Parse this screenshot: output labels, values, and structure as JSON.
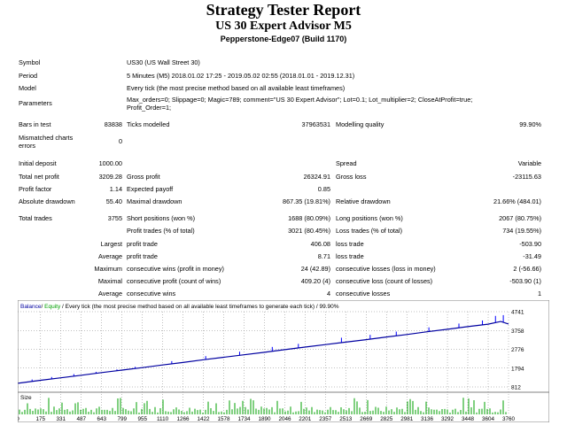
{
  "report": {
    "title": "Strategy Tester Report",
    "subtitle": "US 30 Expert Advisor M5",
    "server": "Pepperstone-Edge07 (Build 1170)"
  },
  "info": {
    "symbol_label": "Symbol",
    "symbol": "US30 (US Wall Street 30)",
    "period_label": "Period",
    "period": "5 Minutes (M5) 2018.01.02 17:25 - 2019.05.02 02:55 (2018.01.01 - 2019.12.31)",
    "model_label": "Model",
    "model": "Every tick (the most precise method based on all available least timeframes)",
    "parameters_label": "Parameters",
    "parameters_line1": "Max_orders=0; Slippage=0; Magic=789; comment=\"US 30 Expert Advisor\"; Lot=0.1; Lot_multiplier=2; CloseAtProfit=true;",
    "parameters_line2": "Profit_Order=1;"
  },
  "stats": {
    "bars_label": "Bars in test",
    "bars": "83838",
    "ticks_label": "Ticks modelled",
    "ticks": "37963531",
    "quality_label": "Modelling quality",
    "quality": "99.90%",
    "mismatch_label1": "Mismatched charts",
    "mismatch_label2": "errors",
    "mismatch": "0",
    "deposit_label": "Initial deposit",
    "deposit": "1000.00",
    "spread_label": "Spread",
    "spread": "Variable",
    "net_label": "Total net profit",
    "net": "3209.28",
    "gross_profit_label": "Gross profit",
    "gross_profit": "26324.91",
    "gross_loss_label": "Gross loss",
    "gross_loss": "-23115.63",
    "pf_label": "Profit factor",
    "pf": "1.14",
    "payoff_label": "Expected payoff",
    "payoff": "0.85",
    "abs_dd_label": "Absolute drawdown",
    "abs_dd": "55.40",
    "max_dd_label": "Maximal drawdown",
    "max_dd": "867.35 (19.81%)",
    "rel_dd_label": "Relative drawdown",
    "rel_dd": "21.66% (484.01)",
    "trades_label": "Total trades",
    "trades": "3755",
    "short_label": "Short positions (won %)",
    "short": "1688 (80.09%)",
    "long_label": "Long positions (won %)",
    "long": "2067 (80.75%)",
    "ptrades_label": "Profit trades (% of total)",
    "ptrades": "3021 (80.45%)",
    "ltrades_label": "Loss trades (% of total)",
    "ltrades": "734 (19.55%)",
    "largest": "Largest",
    "average": "Average",
    "maximum": "Maximum",
    "maximal": "Maximal",
    "average2": "Average",
    "largest_profit_label": "profit trade",
    "largest_profit": "406.08",
    "largest_loss_label": "loss trade",
    "largest_loss": "-503.90",
    "avg_profit_label": "profit trade",
    "avg_profit": "8.71",
    "avg_loss_label": "loss trade",
    "avg_loss": "-31.49",
    "max_wins_label": "consecutive wins (profit in money)",
    "max_wins": "24 (42.89)",
    "max_losses_label": "consecutive losses (loss in money)",
    "max_losses": "2 (-56.66)",
    "maxl_profit_label": "consecutive profit (count of wins)",
    "maxl_profit": "409.20 (4)",
    "maxl_loss_label": "consecutive loss (count of losses)",
    "maxl_loss": "-503.90 (1)",
    "avg_wins_label": "consecutive wins",
    "avg_wins": "4",
    "avg_losses_label": "consecutive losses",
    "avg_losses": "1"
  },
  "chart": {
    "legend_balance": "Balance",
    "legend_sep": " / ",
    "legend_equity": "Equity",
    "legend_rest": " / Every tick (the most precise method based on all available least timeframes to generate each tick) / 99.90%",
    "size_label": "Size",
    "colors": {
      "balance": "#0000a0",
      "equity": "#0000ff",
      "size": "#00a000",
      "grid": "#808080"
    }
  },
  "chart_data": {
    "type": "line",
    "title": "",
    "y_ticks": [
      "4741",
      "3758",
      "2776",
      "1794",
      "812"
    ],
    "ylim": [
      812,
      4741
    ],
    "x_ticks": [
      "0",
      "175",
      "331",
      "487",
      "643",
      "799",
      "955",
      "1110",
      "1266",
      "1422",
      "1578",
      "1734",
      "1890",
      "2046",
      "2201",
      "2357",
      "2513",
      "2669",
      "2825",
      "2981",
      "3136",
      "3292",
      "3448",
      "3604",
      "3760"
    ],
    "xlim": [
      0,
      3760
    ],
    "series": [
      {
        "name": "Balance",
        "x": [
          0,
          175,
          331,
          487,
          643,
          799,
          955,
          1110,
          1266,
          1422,
          1578,
          1734,
          1890,
          2046,
          2201,
          2357,
          2513,
          2669,
          2825,
          2981,
          3136,
          3292,
          3448,
          3604,
          3700,
          3760
        ],
        "values": [
          1000,
          1160,
          1290,
          1420,
          1560,
          1690,
          1820,
          1960,
          2090,
          2230,
          2360,
          2490,
          2620,
          2760,
          2890,
          3020,
          3150,
          3280,
          3420,
          3550,
          3690,
          3820,
          3960,
          4090,
          4230,
          4100
        ]
      },
      {
        "name": "Equity",
        "spikes": [
          {
            "x": 110,
            "v": 1200
          },
          {
            "x": 260,
            "v": 1330
          },
          {
            "x": 430,
            "v": 1480
          },
          {
            "x": 600,
            "v": 1600
          },
          {
            "x": 760,
            "v": 1730
          },
          {
            "x": 900,
            "v": 1860
          },
          {
            "x": 1180,
            "v": 2160
          },
          {
            "x": 1440,
            "v": 2420
          },
          {
            "x": 1700,
            "v": 2650
          },
          {
            "x": 1950,
            "v": 2900
          },
          {
            "x": 2150,
            "v": 3060
          },
          {
            "x": 2480,
            "v": 3380
          },
          {
            "x": 2700,
            "v": 3530
          },
          {
            "x": 2900,
            "v": 3700
          },
          {
            "x": 3150,
            "v": 3920
          },
          {
            "x": 3380,
            "v": 4120
          },
          {
            "x": 3560,
            "v": 4280
          },
          {
            "x": 3660,
            "v": 4520
          },
          {
            "x": 3720,
            "v": 4560
          }
        ]
      }
    ]
  }
}
